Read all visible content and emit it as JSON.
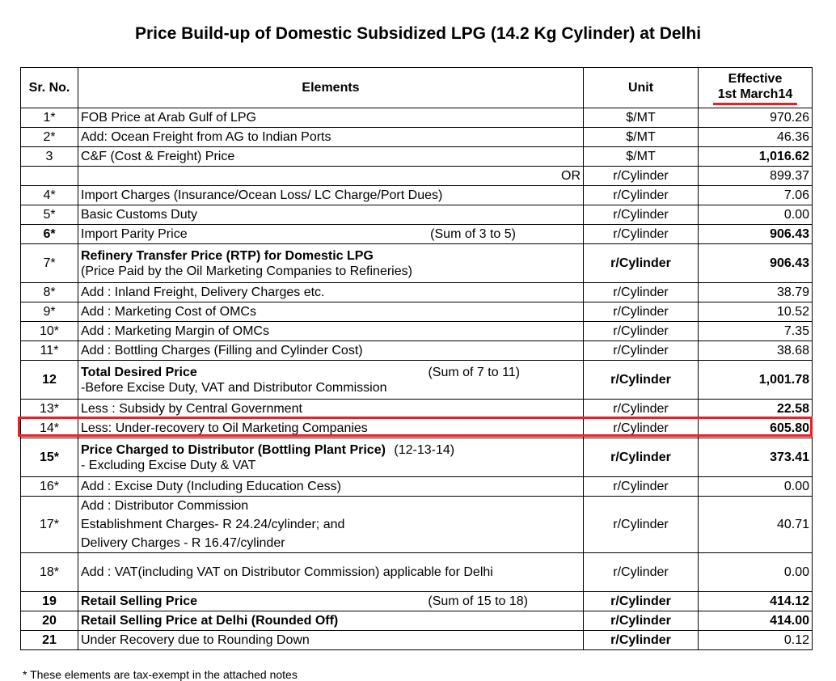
{
  "title": "Price Build-up of Domestic Subsidized LPG (14.2 Kg Cylinder) at Delhi",
  "header": {
    "sr_no": "Sr. No.",
    "elements": "Elements",
    "unit": "Unit",
    "effective_line1": "Effective",
    "effective_line2": "1st March14"
  },
  "rows": [
    {
      "sr": "1*",
      "element": "FOB Price at Arab Gulf of LPG",
      "unit": "$/MT",
      "value": "970.26"
    },
    {
      "sr": "2*",
      "element": "Add: Ocean Freight from AG to Indian Ports",
      "unit": "$/MT",
      "value": "46.36"
    },
    {
      "sr": "3",
      "element": "C&F (Cost & Freight) Price",
      "unit": "$/MT",
      "value": "1,016.62"
    },
    {
      "sr": "",
      "element": "OR",
      "unit": "r/Cylinder",
      "value": "899.37"
    },
    {
      "sr": "4*",
      "element": "Import Charges (Insurance/Ocean Loss/ LC Charge/Port Dues)",
      "unit": "r/Cylinder",
      "value": "7.06"
    },
    {
      "sr": "5*",
      "element": "Basic Customs Duty",
      "unit": "r/Cylinder",
      "value": "0.00"
    },
    {
      "sr": "6*",
      "element": "Import Parity Price",
      "note": "(Sum of 3 to 5)",
      "unit": "r/Cylinder",
      "value": "906.43"
    },
    {
      "sr": "7*",
      "element": "Refinery Transfer Price (RTP) for Domestic LPG",
      "element_line2": "(Price Paid by the Oil Marketing Companies to Refineries)",
      "unit": "r/Cylinder",
      "value": "906.43"
    },
    {
      "sr": "8*",
      "element": "Add : Inland Freight, Delivery Charges etc.",
      "unit": "r/Cylinder",
      "value": "38.79"
    },
    {
      "sr": "9*",
      "element": "Add : Marketing Cost of OMCs",
      "unit": "r/Cylinder",
      "value": "10.52"
    },
    {
      "sr": "10*",
      "element": "Add : Marketing Margin of OMCs",
      "unit": "r/Cylinder",
      "value": "7.35"
    },
    {
      "sr": "11*",
      "element": "Add : Bottling Charges (Filling and Cylinder Cost)",
      "unit": "r/Cylinder",
      "value": "38.68"
    },
    {
      "sr": "12",
      "element": "Total Desired Price",
      "note": "(Sum of 7 to 11)",
      "element_line2": "-Before Excise Duty, VAT and Distributor Commission",
      "unit": "r/Cylinder",
      "value": "1,001.78"
    },
    {
      "sr": "13*",
      "element": "Less : Subsidy by Central Government",
      "unit": "r/Cylinder",
      "value": "22.58"
    },
    {
      "sr": "14*",
      "element": "Less: Under-recovery to Oil Marketing Companies",
      "unit": "r/Cylinder",
      "value": "605.80"
    },
    {
      "sr": "15*",
      "element": "Price Charged to Distributor (Bottling Plant Price)",
      "note": "(12-13-14)",
      "element_line2": "- Excluding Excise Duty & VAT",
      "unit": "r/Cylinder",
      "value": "373.41"
    },
    {
      "sr": "16*",
      "element": "Add : Excise Duty (Including Education Cess)",
      "unit": "r/Cylinder",
      "value": "0.00"
    },
    {
      "sr": "17*",
      "element": "Add : Distributor Commission",
      "element_line2": "Establishment Charges- R 24.24/cylinder; and",
      "element_line3": "Delivery Charges - R 16.47/cylinder",
      "unit": "r/Cylinder",
      "value": "40.71"
    },
    {
      "sr": "18*",
      "element": "Add : VAT(including VAT on Distributor Commission) applicable for Delhi",
      "unit": "r/Cylinder",
      "value": "0.00"
    },
    {
      "sr": "19",
      "element": "Retail Selling Price",
      "note": "(Sum of 15 to 18)",
      "unit": "r/Cylinder",
      "value": "414.12"
    },
    {
      "sr": "20",
      "element": "Retail Selling Price at Delhi (Rounded Off)",
      "unit": "r/Cylinder",
      "value": "414.00"
    },
    {
      "sr": "21",
      "element": "Under Recovery due to Rounding Down",
      "unit": "r/Cylinder",
      "value": "0.12"
    }
  ],
  "footnote": "* These elements are tax-exempt in the attached notes"
}
